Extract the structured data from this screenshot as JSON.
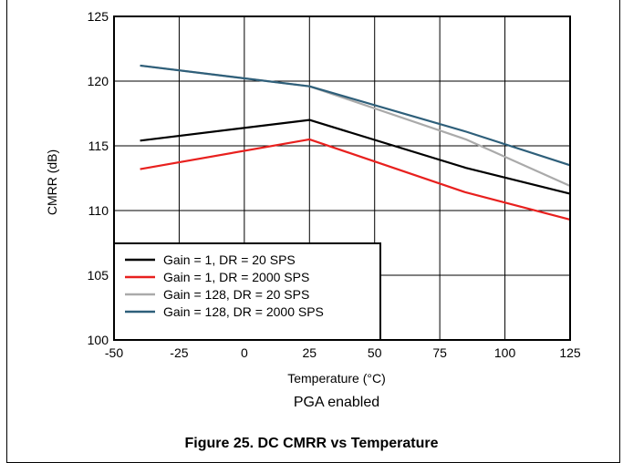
{
  "chart_data": {
    "type": "line",
    "title": "",
    "subtitle": "PGA enabled",
    "xlabel": "Temperature (°C)",
    "ylabel": "CMRR (dB)",
    "xlim": [
      -50,
      125
    ],
    "ylim": [
      100,
      125
    ],
    "xticks": [
      -50,
      -25,
      0,
      25,
      50,
      75,
      100,
      125
    ],
    "yticks": [
      100,
      105,
      110,
      115,
      120,
      125
    ],
    "grid": true,
    "legend_position": "bottom-left",
    "series": [
      {
        "name": "Gain = 1, DR = 20 SPS",
        "color": "#000000",
        "x": [
          -40,
          25,
          85,
          125
        ],
        "y": [
          115.4,
          117.0,
          113.3,
          111.3
        ]
      },
      {
        "name": "Gain = 1, DR = 2000 SPS",
        "color": "#e8201e",
        "x": [
          -40,
          25,
          85,
          125
        ],
        "y": [
          113.2,
          115.5,
          111.4,
          109.3
        ]
      },
      {
        "name": "Gain = 128, DR = 20 SPS",
        "color": "#aaaaaa",
        "x": [
          -40,
          25,
          85,
          125
        ],
        "y": [
          121.2,
          119.6,
          115.5,
          111.9
        ]
      },
      {
        "name": "Gain = 128, DR = 2000 SPS",
        "color": "#2e5f7a",
        "x": [
          -40,
          25,
          85,
          125
        ],
        "y": [
          121.2,
          119.6,
          116.1,
          113.5
        ]
      }
    ]
  },
  "caption": "Figure 25. DC CMRR vs Temperature"
}
